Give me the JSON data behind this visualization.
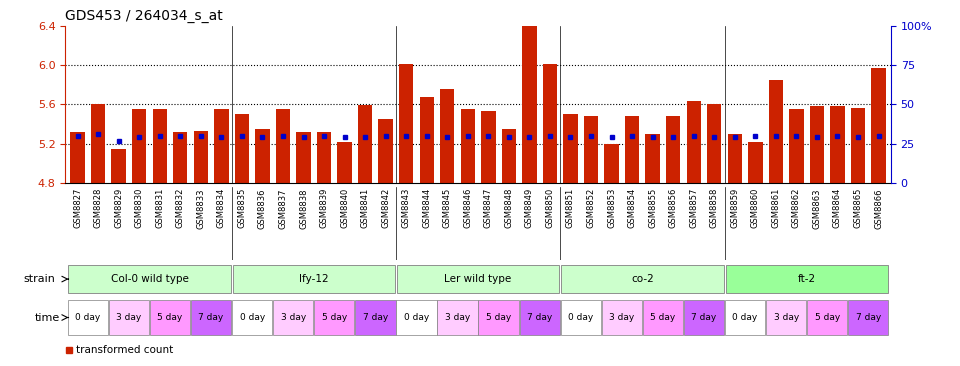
{
  "title": "GDS453 / 264034_s_at",
  "samples": [
    "GSM8827",
    "GSM8828",
    "GSM8829",
    "GSM8830",
    "GSM8831",
    "GSM8832",
    "GSM8833",
    "GSM8834",
    "GSM8835",
    "GSM8836",
    "GSM8837",
    "GSM8838",
    "GSM8839",
    "GSM8840",
    "GSM8841",
    "GSM8842",
    "GSM8843",
    "GSM8844",
    "GSM8845",
    "GSM8846",
    "GSM8847",
    "GSM8848",
    "GSM8849",
    "GSM8850",
    "GSM8851",
    "GSM8852",
    "GSM8853",
    "GSM8854",
    "GSM8855",
    "GSM8856",
    "GSM8857",
    "GSM8858",
    "GSM8859",
    "GSM8860",
    "GSM8861",
    "GSM8862",
    "GSM8863",
    "GSM8864",
    "GSM8865",
    "GSM8866"
  ],
  "red_values": [
    5.32,
    5.6,
    5.15,
    5.55,
    5.55,
    5.32,
    5.33,
    5.55,
    5.5,
    5.35,
    5.55,
    5.32,
    5.32,
    5.22,
    5.59,
    5.45,
    6.01,
    5.67,
    5.76,
    5.55,
    5.53,
    5.35,
    6.6,
    6.01,
    5.5,
    5.48,
    5.2,
    5.48,
    5.3,
    5.48,
    5.63,
    5.6,
    5.3,
    5.22,
    5.85,
    5.55,
    5.58,
    5.58,
    5.56,
    5.97
  ],
  "blue_values": [
    5.28,
    5.3,
    5.23,
    5.27,
    5.28,
    5.28,
    5.28,
    5.27,
    5.28,
    5.27,
    5.28,
    5.27,
    5.28,
    5.27,
    5.27,
    5.28,
    5.28,
    5.28,
    5.27,
    5.28,
    5.28,
    5.27,
    5.27,
    5.28,
    5.27,
    5.28,
    5.27,
    5.28,
    5.27,
    5.27,
    5.28,
    5.27,
    5.27,
    5.28,
    5.28,
    5.28,
    5.27,
    5.28,
    5.27,
    5.28
  ],
  "ylim_left": [
    4.8,
    6.4
  ],
  "ylim_right": [
    0,
    100
  ],
  "yticks_left": [
    4.8,
    5.2,
    5.6,
    6.0,
    6.4
  ],
  "yticks_right": [
    0,
    25,
    50,
    75,
    100
  ],
  "ytick_labels_right": [
    "0",
    "25",
    "50",
    "75",
    "100%"
  ],
  "strains": [
    {
      "label": "Col-0 wild type",
      "start": 0,
      "end": 8,
      "color": "#ccffcc"
    },
    {
      "label": "lfy-12",
      "start": 8,
      "end": 16,
      "color": "#ccffcc"
    },
    {
      "label": "Ler wild type",
      "start": 16,
      "end": 24,
      "color": "#ccffcc"
    },
    {
      "label": "co-2",
      "start": 24,
      "end": 32,
      "color": "#ccffcc"
    },
    {
      "label": "ft-2",
      "start": 32,
      "end": 40,
      "color": "#99ff99"
    }
  ],
  "times": [
    "0 day",
    "3 day",
    "5 day",
    "7 day"
  ],
  "time_colors": [
    "#ffffff",
    "#ffccff",
    "#ff99ff",
    "#cc66ff"
  ],
  "bar_color": "#cc2200",
  "dot_color": "#0000cc",
  "axis_color_left": "#cc2200",
  "axis_color_right": "#0000cc",
  "background_color": "#ffffff",
  "fig_width": 9.6,
  "fig_height": 3.66,
  "dpi": 100
}
